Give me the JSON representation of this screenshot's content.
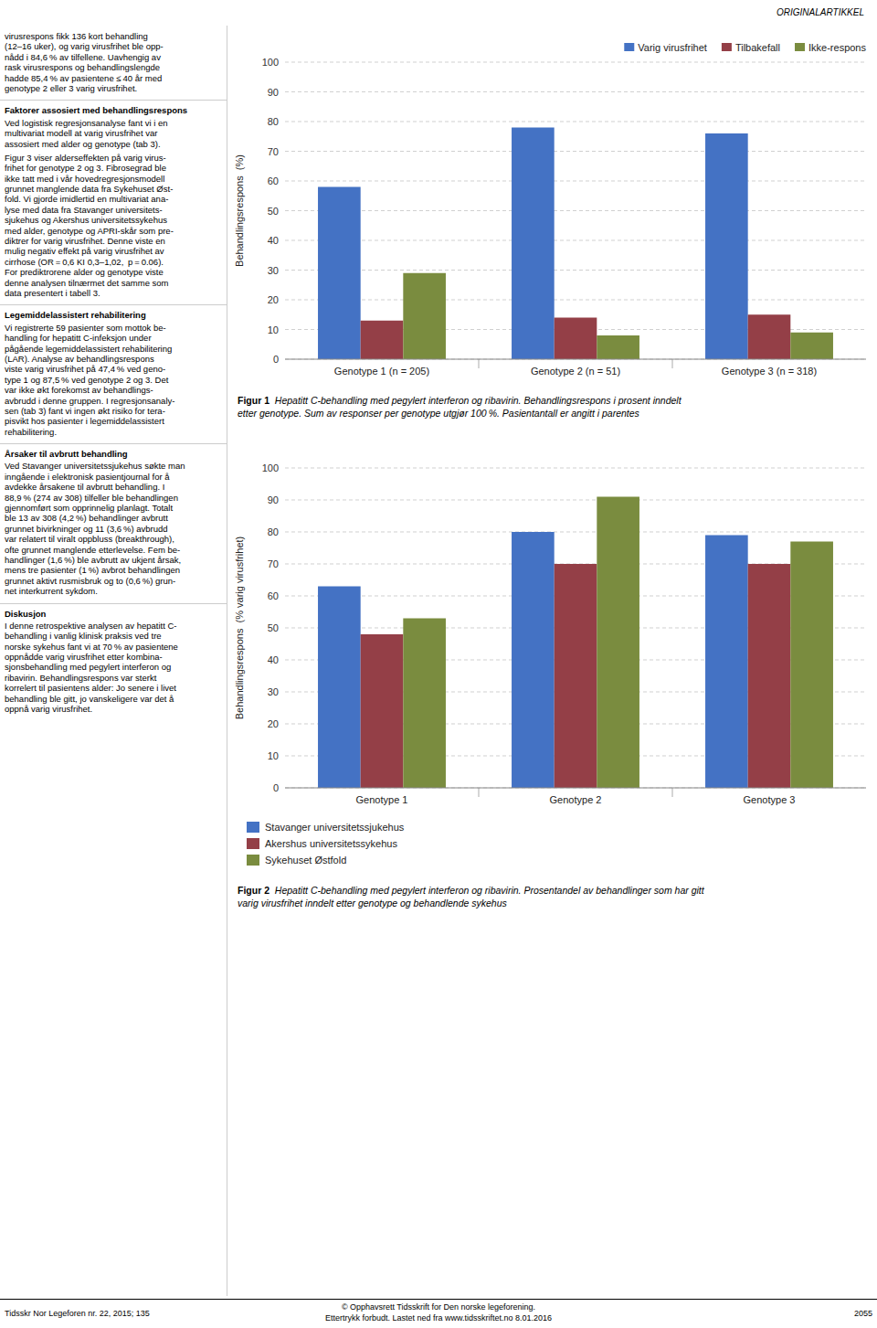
{
  "header": "ORIGINALARTIKKEL",
  "footer": {
    "left": "Tidsskr Nor Legeforen nr. 22, 2015; 135",
    "center": [
      "© Opphavsrett Tidsskrift for Den norske legeforening.",
      "Ettertrykk forbudt. Lastet ned fra www.tidsskriftet.no 8.01.2016"
    ],
    "right": "2055"
  },
  "left_column": [
    {
      "paragraphs": [
        "virusrespons fikk 136 kort behandling\n(12–16 uker), og varig virusfrihet ble opp-\nnådd i 84,6 % av tilfellene. Uavhengig av\nrask virusrespons og behandlingslengde\nhadde 85,4 % av pasientene ≤ 40 år med\ngenotype 2 eller 3 varig virusfrihet."
      ]
    },
    {
      "heading": "Faktorer assosiert med behandlingsrespons",
      "paragraphs": [
        "Ved logistisk regresjonsanalyse fant vi i en\nmultivariat modell at varig virusfrihet var\nassosiert med alder og genotype (tab 3).",
        "Figur 3 viser alderseffekten på varig virus-\nfrihet for genotype 2 og 3. Fibrosegrad ble\nikke tatt med i vår hovedregresjonsmodell\ngrunnet manglende data fra Sykehuset Øst-\nfold. Vi gjorde imidlertid en multivariat ana-\nlyse med data fra Stavanger universitets-\nsjukehus og Akershus universitetssykehus\nmed alder, genotype og APRI-skår som pre-\ndiktrer for varig virusfrihet. Denne viste en\nmulig negativ effekt på varig virusfrihet av\ncirrhose (OR = 0,6 KI 0,3–1,02, p = 0.06).\nFor prediktrorene alder og genotype viste\ndenne analysen tilnærmet det samme som\ndata presentert i tabell 3."
      ]
    },
    {
      "heading": "Legemiddelassistert rehabilitering",
      "paragraphs": [
        "Vi registrerte 59 pasienter som mottok be-\nhandling for hepatitt C-infeksjon under\npågående legemiddelassistert rehabilitering\n(LAR). Analyse av behandlingsrespons\nviste varig virusfrihet på 47,4 % ved geno-\ntype 1 og 87,5 % ved genotype 2 og 3. Det\nvar ikke økt forekomst av behandlings-\navbrudd i denne gruppen. I regresjonsanaly-\nsen (tab 3) fant vi ingen økt risiko for tera-\npisvikt hos pasienter i legemiddelassistert\nrehabilitering."
      ]
    },
    {
      "heading": "Årsaker til avbrutt behandling",
      "paragraphs": [
        "Ved Stavanger universitetssjukehus søkte man\ninngående i elektronisk pasientjournal for å\navdekke årsakene til avbrutt behandling. I\n88,9 % (274 av 308) tilfeller ble behandlingen\ngjennomført som opprinnelig planlagt. Totalt\nble 13 av 308 (4,2 %) behandlinger avbrutt\ngrunnet bivirkninger og 11 (3,6 %) avbrudd\nvar relatert til viralt oppbluss (breakthrough),\nofte grunnet manglende etterlevelse. Fem be-\nhandlinger (1,6 %) ble avbrutt av ukjent årsak,\nmens tre pasienter (1 %) avbrot behandlingen\ngrunnet aktivt rusmisbruk og to (0,6 %) grun-\nnet interkurrent sykdom."
      ]
    },
    {
      "heading": "Diskusjon",
      "paragraphs": [
        "I denne retrospektive analysen av hepatitt C-\nbehandling i vanlig klinisk praksis ved tre\nnorske sykehus fant vi at 70 % av pasientene\noppnådde varig virusfrihet etter kombina-\nsjonsbehandling med pegylert interferon og\nribavirin. Behandlingsrespons var sterkt\nkorrelert til pasientens alder: Jo senere i livet\nbehandling ble gitt, jo vanskeligere var det å\noppnå varig virusfrihet."
      ]
    }
  ],
  "chart_data": [
    {
      "type": "bar",
      "ylabel": "Behandlingsrespons  (%)",
      "categories": [
        "Genotype 1 (n = 205)",
        "Genotype 2 (n = 51)",
        "Genotype 3 (n = 318)"
      ],
      "series": [
        {
          "name": "Varig virusfrihet",
          "color": "#4472c4",
          "values": [
            58,
            78,
            76
          ]
        },
        {
          "name": "Tilbakefall",
          "color": "#943f47",
          "values": [
            13,
            14,
            15
          ]
        },
        {
          "name": "Ikke-respons",
          "color": "#7a8c3f",
          "values": [
            29,
            8,
            9
          ]
        }
      ],
      "ylim": [
        0,
        100
      ],
      "yticks": [
        0,
        10,
        20,
        30,
        40,
        50,
        60,
        70,
        80,
        90,
        100
      ],
      "grid": true,
      "legend": "top",
      "caption_label": "Figur 1",
      "caption": "  Hepatitt C-behandling med pegylert interferon og ribavirin. Behandlingsrespons i prosent inndelt\netter genotype. Sum av responser per genotype utgjør 100 %. Pasientantall er angitt i parentes"
    },
    {
      "type": "bar",
      "ylabel": "Behandlingsrespons  (% varig virusfrihet)",
      "categories": [
        "Genotype 1",
        "Genotype 2",
        "Genotype 3"
      ],
      "series": [
        {
          "name": "Stavanger universitetssjukehus",
          "color": "#4472c4",
          "values": [
            63,
            80,
            79
          ]
        },
        {
          "name": "Akershus universitetssykehus",
          "color": "#943f47",
          "values": [
            48,
            70,
            70
          ]
        },
        {
          "name": "Sykehuset Østfold",
          "color": "#7a8c3f",
          "values": [
            53,
            91,
            77
          ]
        }
      ],
      "ylim": [
        0,
        100
      ],
      "yticks": [
        0,
        10,
        20,
        30,
        40,
        50,
        60,
        70,
        80,
        90,
        100
      ],
      "grid": true,
      "legend": "bottom",
      "caption_label": "Figur 2",
      "caption": "  Hepatitt C-behandling med pegylert interferon og ribavirin. Prosentandel av behandlinger som har gitt\nvarig virusfrihet inndelt etter genotype og behandlende sykehus"
    }
  ]
}
